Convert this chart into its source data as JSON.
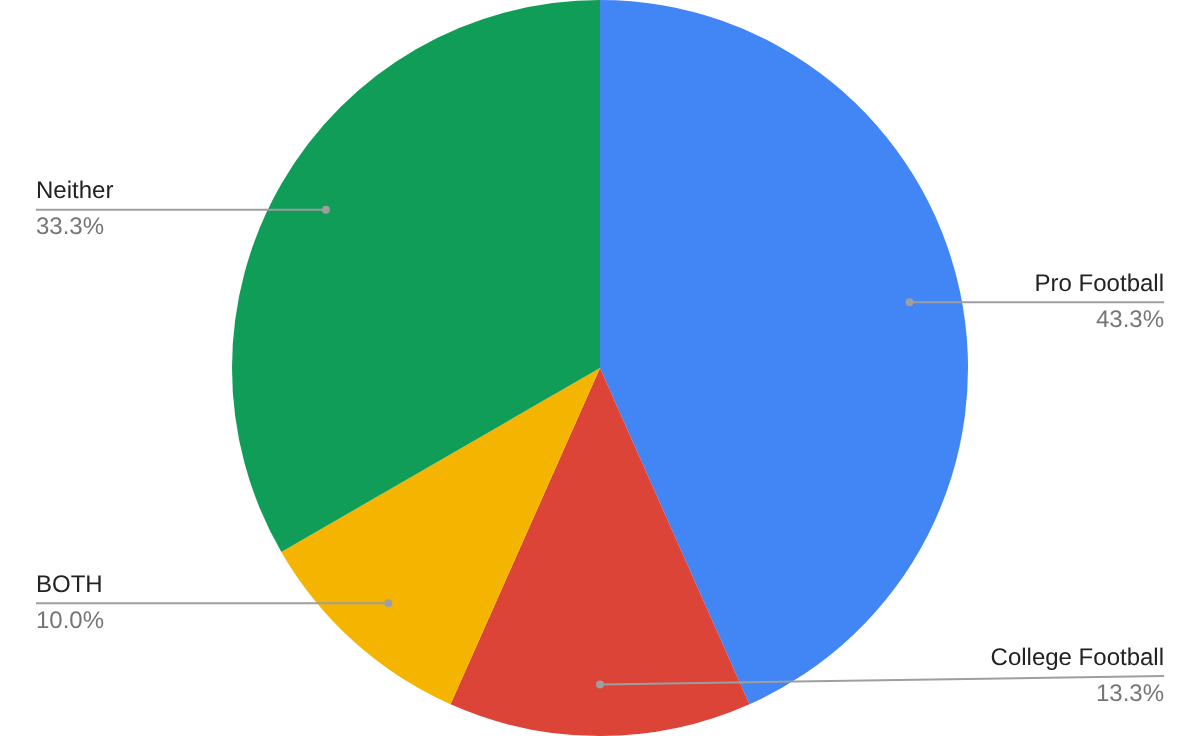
{
  "chart_data": {
    "type": "pie",
    "categories": [
      "Pro Football",
      "College Football",
      "BOTH",
      "Neither"
    ],
    "values": [
      43.3,
      13.3,
      10.0,
      33.3
    ],
    "colors": [
      "#4285f4",
      "#db4437",
      "#f4b400",
      "#0f9d58"
    ],
    "value_labels": [
      "43.3%",
      "13.3%",
      "10.0%",
      "33.3%"
    ],
    "legend": false
  }
}
